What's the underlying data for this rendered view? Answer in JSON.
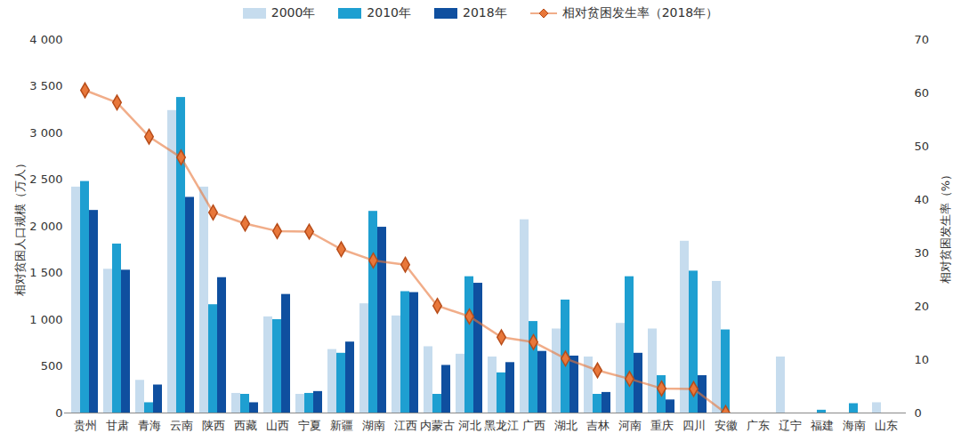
{
  "chart_data": {
    "type": "bar",
    "categories": [
      "贵州",
      "甘肃",
      "青海",
      "云南",
      "陕西",
      "西藏",
      "山西",
      "宁夏",
      "新疆",
      "湖南",
      "江西",
      "内蒙古",
      "河北",
      "黑龙江",
      "广西",
      "湖北",
      "吉林",
      "河南",
      "重庆",
      "四川",
      "安徽",
      "广东",
      "辽宁",
      "福建",
      "海南",
      "山东"
    ],
    "series": [
      {
        "name": "2000年",
        "type": "bar",
        "color": "#c6dcee",
        "values": [
          2420,
          1540,
          350,
          3240,
          2420,
          210,
          1030,
          200,
          680,
          1170,
          1040,
          710,
          630,
          600,
          2070,
          900,
          600,
          960,
          900,
          1840,
          1410,
          0,
          600,
          0,
          0,
          110
        ]
      },
      {
        "name": "2010年",
        "type": "bar",
        "color": "#1e9fd1",
        "values": [
          2480,
          1810,
          110,
          3380,
          1160,
          200,
          1000,
          210,
          640,
          2160,
          1300,
          200,
          1460,
          430,
          980,
          1210,
          200,
          1460,
          400,
          1520,
          890,
          0,
          0,
          30,
          100,
          0
        ]
      },
      {
        "name": "2018年",
        "type": "bar",
        "color": "#0f4f9f",
        "values": [
          2170,
          1530,
          300,
          2310,
          1450,
          110,
          1270,
          230,
          760,
          1990,
          1290,
          510,
          1390,
          540,
          660,
          610,
          220,
          640,
          140,
          400,
          0,
          0,
          0,
          0,
          0,
          0
        ]
      },
      {
        "name": "相对贫困发生率（2018年）",
        "type": "line",
        "axis": "y2",
        "marker": "diamond",
        "color": "#e8773a",
        "values": [
          60.5,
          58.2,
          51.8,
          47.9,
          37.6,
          35.5,
          34.1,
          34.0,
          30.7,
          28.6,
          27.8,
          20.1,
          18.1,
          14.2,
          13.3,
          10.2,
          8.0,
          6.4,
          4.6,
          4.5,
          0,
          null,
          null,
          null,
          null,
          null
        ]
      }
    ],
    "ylabel": "相对贫困人口规模（万人）",
    "y2label": "相对贫困发生率（%）",
    "ylim": [
      0,
      4000
    ],
    "yticks": [
      0,
      500,
      {
        "value": 1000,
        "label": "1 000"
      },
      {
        "value": 1500,
        "label": "1 500"
      },
      {
        "value": 2000,
        "label": "2 000"
      },
      {
        "value": 2500,
        "label": "2 500"
      },
      {
        "value": 3000,
        "label": "3 000"
      },
      {
        "value": 3500,
        "label": "3 500"
      },
      {
        "value": 4000,
        "label": "4 000"
      }
    ],
    "y2lim": [
      0,
      70
    ],
    "y2ticks": [
      0,
      10,
      20,
      30,
      40,
      50,
      60,
      70
    ],
    "legend": "top"
  }
}
